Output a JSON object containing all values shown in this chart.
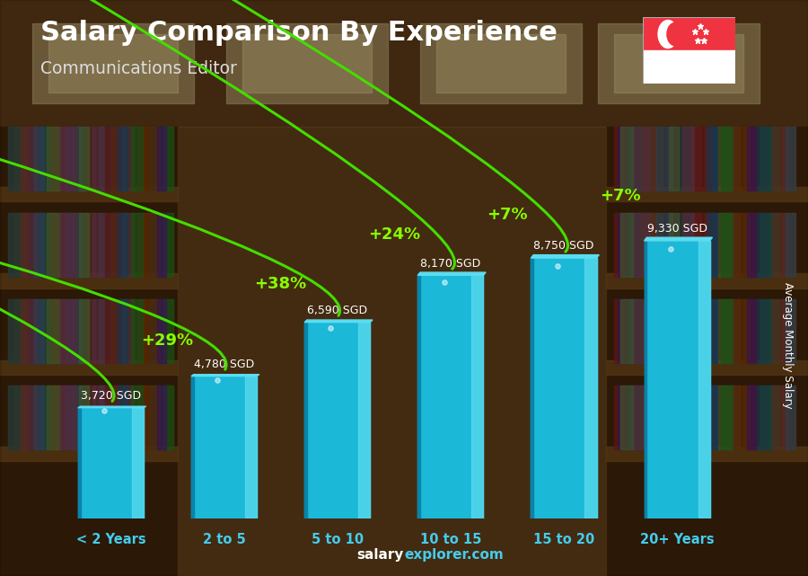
{
  "title": "Salary Comparison By Experience",
  "subtitle": "Communications Editor",
  "categories": [
    "< 2 Years",
    "2 to 5",
    "5 to 10",
    "10 to 15",
    "15 to 20",
    "20+ Years"
  ],
  "values": [
    3720,
    4780,
    6590,
    8170,
    8750,
    9330
  ],
  "bar_color_main": "#1BB8D8",
  "bar_color_light": "#5DDCF0",
  "bar_color_dark": "#0880A8",
  "bar_color_shine": "#A0EEF8",
  "salary_labels": [
    "3,720 SGD",
    "4,780 SGD",
    "6,590 SGD",
    "8,170 SGD",
    "8,750 SGD",
    "9,330 SGD"
  ],
  "pct_labels": [
    "+29%",
    "+38%",
    "+24%",
    "+7%",
    "+7%"
  ],
  "pct_color": "#88FF00",
  "arrow_color": "#44DD00",
  "value_label_color": "#FFFFFF",
  "ylabel": "Average Monthly Salary",
  "title_color": "#FFFFFF",
  "subtitle_color": "#DDDDDD",
  "xtick_color": "#44CCEE",
  "footer_salary_color": "#FFFFFF",
  "footer_explorer_color": "#44CCEE",
  "ylim": [
    0,
    12000
  ],
  "bg_top": "#3a2510",
  "bg_mid": "#5a3a1a",
  "bg_bottom": "#2a1808"
}
